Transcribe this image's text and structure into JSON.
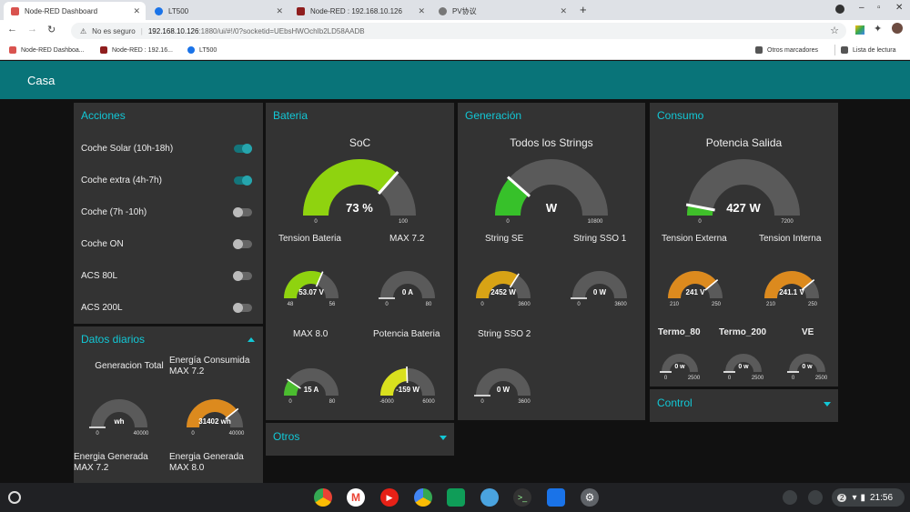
{
  "browser": {
    "tabs": [
      {
        "title": "Node-RED Dashboard",
        "fav": "#d9534f",
        "active": true
      },
      {
        "title": "LT500",
        "fav": "#1a73e8",
        "active": false
      },
      {
        "title": "Node-RED : 192.168.10.126",
        "fav": "#8f1e1e",
        "active": false
      },
      {
        "title": "PV协议",
        "fav": "#777777",
        "active": false
      }
    ],
    "insecure_label": "No es seguro",
    "url_host": "192.168.10.126",
    "url_rest": ":1880/ui/#!/0?socketid=UEbsHWOchIb2LD58AADB",
    "bookmarks": [
      {
        "title": "Node-RED Dashboa...",
        "fav": "#d9534f"
      },
      {
        "title": "Node-RED : 192.16...",
        "fav": "#8f1e1e"
      },
      {
        "title": "LT500",
        "fav": "#1a73e8"
      }
    ],
    "other_bookmarks": "Otros marcadores",
    "reading_list": "Lista de lectura"
  },
  "header": {
    "title": "Casa"
  },
  "acciones": {
    "title": "Acciones",
    "items": [
      {
        "label": "Coche Solar (10h-18h)",
        "on": true
      },
      {
        "label": "Coche extra (4h-7h)",
        "on": true
      },
      {
        "label": "Coche (7h -10h)",
        "on": false
      },
      {
        "label": "Coche ON",
        "on": false
      },
      {
        "label": "ACS 80L",
        "on": false
      },
      {
        "label": "ACS 200L",
        "on": false
      }
    ]
  },
  "datos": {
    "title": "Datos diarios",
    "label_gen_total": "Generacion Total",
    "label_consumida": "Energía Consumida MAX 7.2",
    "label_gen_72": "Energia Generada MAX 7.2",
    "label_gen_80": "Energia Generada MAX 8.0"
  },
  "bateria": {
    "title": "Bateria",
    "label_soc": "SoC",
    "label_tension": "Tension Bateria",
    "label_max72": "MAX 7.2",
    "label_max80": "MAX 8.0",
    "label_potencia": "Potencia Bateria"
  },
  "generacion": {
    "title": "Generación",
    "label_all": "Todos los Strings",
    "label_se": "String SE",
    "label_sso1": "String SSO 1",
    "label_sso2": "String SSO 2"
  },
  "consumo": {
    "title": "Consumo",
    "label_potencia": "Potencia Salida",
    "label_ext": "Tension Externa",
    "label_int": "Tension Interna",
    "label_t80": "Termo_80",
    "label_t200": "Termo_200",
    "label_ve": "VE"
  },
  "otros": {
    "title": "Otros"
  },
  "control": {
    "title": "Control"
  },
  "gauges": [
    {
      "id": "soc",
      "value": "73 %",
      "min": "0",
      "max": "100",
      "fraction": 0.73,
      "color": "#8fd30f"
    },
    {
      "id": "tension_bat",
      "value": "53.07 V",
      "min": "48",
      "max": "56",
      "fraction": 0.63,
      "color": "#8fd30f"
    },
    {
      "id": "max72",
      "value": "0 A",
      "min": "0",
      "max": "80",
      "fraction": 0.0,
      "color": "#8fd30f"
    },
    {
      "id": "max80",
      "value": "15 A",
      "min": "0",
      "max": "80",
      "fraction": 0.19,
      "color": "#4bbd2f"
    },
    {
      "id": "pot_bat",
      "value": "-159 W",
      "min": "-6000",
      "max": "6000",
      "fraction": 0.49,
      "color": "#d9e01e"
    },
    {
      "id": "todos",
      "value": "W",
      "min": "0",
      "max": "10800",
      "fraction": 0.23,
      "color": "#37c12a"
    },
    {
      "id": "se",
      "value": "2452 W",
      "min": "0",
      "max": "3600",
      "fraction": 0.68,
      "color": "#d8a315"
    },
    {
      "id": "sso1",
      "value": "0 W",
      "min": "0",
      "max": "3600",
      "fraction": 0.0,
      "color": "#d8a315"
    },
    {
      "id": "sso2",
      "value": "0 W",
      "min": "0",
      "max": "3600",
      "fraction": 0.0,
      "color": "#d8a315"
    },
    {
      "id": "pot_sal",
      "value": "427 W",
      "min": "0",
      "max": "7200",
      "fraction": 0.06,
      "color": "#3fbf2a"
    },
    {
      "id": "ext",
      "value": "241 V",
      "min": "210",
      "max": "250",
      "fraction": 0.78,
      "color": "#dc8a1e"
    },
    {
      "id": "int",
      "value": "241.1 V",
      "min": "210",
      "max": "250",
      "fraction": 0.78,
      "color": "#dc8a1e"
    },
    {
      "id": "t80",
      "value": "0 w",
      "min": "0",
      "max": "2500",
      "fraction": 0.0,
      "color": "#dc8a1e"
    },
    {
      "id": "t200",
      "value": "0 w",
      "min": "0",
      "max": "2500",
      "fraction": 0.0,
      "color": "#dc8a1e"
    },
    {
      "id": "ve",
      "value": "0 w",
      "min": "0",
      "max": "2500",
      "fraction": 0.0,
      "color": "#dc8a1e"
    },
    {
      "id": "gen_total",
      "value": "wh",
      "min": "0",
      "max": "40000",
      "fraction": 0.0,
      "color": "#dc8a1e"
    },
    {
      "id": "consumida",
      "value": "31402 wh",
      "min": "0",
      "max": "40000",
      "fraction": 0.785,
      "color": "#dc8a1e"
    }
  ],
  "taskbar": {
    "badge": "2",
    "time": "21:56"
  }
}
